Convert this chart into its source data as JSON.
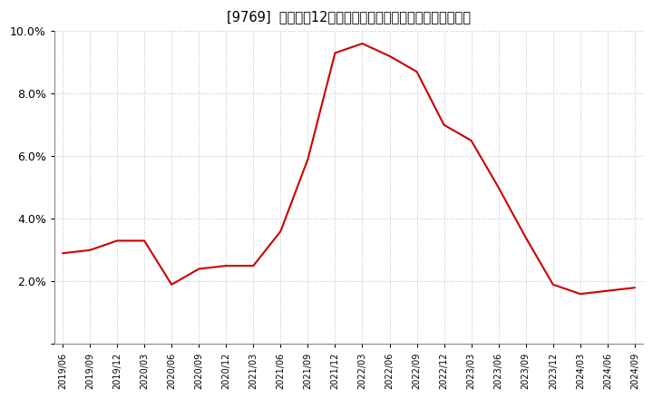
{
  "title": "[9769]  売上高の12か月移動合計の対前年同期増減率の推移",
  "line_color": "#cc0000",
  "background_color": "#ffffff",
  "grid_color": "#aaaaaa",
  "ylim": [
    0.0,
    0.1
  ],
  "yticks": [
    0.0,
    0.02,
    0.04,
    0.06,
    0.08,
    0.1
  ],
  "ytick_labels": [
    "",
    "2.0%",
    "4.0%",
    "6.0%",
    "8.0%",
    "10.0%"
  ],
  "dates": [
    "2019-06",
    "2019-09",
    "2019-12",
    "2020-03",
    "2020-06",
    "2020-09",
    "2020-12",
    "2021-03",
    "2021-06",
    "2021-09",
    "2021-12",
    "2022-03",
    "2022-06",
    "2022-09",
    "2022-12",
    "2023-03",
    "2023-06",
    "2023-09",
    "2023-12",
    "2024-03",
    "2024-06",
    "2024-09"
  ],
  "values": [
    0.029,
    0.03,
    0.033,
    0.033,
    0.019,
    0.024,
    0.025,
    0.025,
    0.036,
    0.059,
    0.093,
    0.096,
    0.092,
    0.087,
    0.07,
    0.065,
    0.05,
    0.034,
    0.019,
    0.016,
    0.017,
    0.018
  ],
  "xtick_labels": [
    "2019/06",
    "2019/09",
    "2019/12",
    "2020/03",
    "2020/06",
    "2020/09",
    "2020/12",
    "2021/03",
    "2021/06",
    "2021/09",
    "2021/12",
    "2022/03",
    "2022/06",
    "2022/09",
    "2022/12",
    "2023/03",
    "2023/06",
    "2023/09",
    "2023/12",
    "2024/03",
    "2024/06",
    "2024/09"
  ]
}
